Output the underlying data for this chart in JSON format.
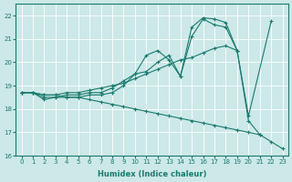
{
  "xlabel": "Humidex (Indice chaleur)",
  "background_color": "#cce8e8",
  "grid_color": "#ffffff",
  "line_color": "#1a7a6e",
  "xlim": [
    -0.5,
    23.5
  ],
  "ylim": [
    16,
    22.5
  ],
  "yticks": [
    16,
    17,
    18,
    19,
    20,
    21,
    22
  ],
  "xticks": [
    0,
    1,
    2,
    3,
    4,
    5,
    6,
    7,
    8,
    9,
    10,
    11,
    12,
    13,
    14,
    15,
    16,
    17,
    18,
    19,
    20,
    21,
    22,
    23
  ],
  "lines": [
    {
      "x": [
        0,
        1,
        2,
        3,
        4,
        5,
        6,
        7,
        8,
        9,
        10,
        11,
        12,
        13,
        14,
        15,
        16,
        17,
        18,
        19,
        20,
        21,
        22,
        23
      ],
      "y": [
        18.7,
        18.7,
        18.4,
        18.5,
        18.5,
        18.5,
        18.6,
        18.6,
        18.7,
        19.0,
        19.5,
        20.3,
        20.5,
        20.1,
        19.4,
        21.5,
        21.9,
        21.85,
        21.7,
        20.5,
        17.5,
        16.9,
        null,
        null
      ]
    },
    {
      "x": [
        0,
        1,
        2,
        3,
        4,
        5,
        6,
        7,
        8,
        9,
        10,
        11,
        12,
        13,
        14,
        15,
        16,
        17,
        18,
        19,
        20,
        21,
        22
      ],
      "y": [
        18.7,
        18.7,
        18.5,
        18.5,
        18.6,
        18.6,
        18.7,
        18.7,
        18.9,
        19.2,
        19.5,
        19.6,
        20.0,
        20.3,
        19.4,
        21.1,
        21.85,
        21.6,
        21.5,
        20.5,
        17.7,
        null,
        21.75
      ]
    },
    {
      "x": [
        0,
        1,
        2,
        3,
        4,
        5,
        6,
        7,
        8,
        9,
        10,
        11,
        12,
        13,
        14,
        15,
        16,
        17,
        18,
        19
      ],
      "y": [
        18.7,
        18.7,
        18.6,
        18.6,
        18.7,
        18.7,
        18.8,
        18.9,
        19.0,
        19.1,
        19.3,
        19.5,
        19.7,
        19.9,
        20.1,
        20.2,
        20.4,
        20.6,
        20.7,
        20.5
      ]
    },
    {
      "x": [
        0,
        1,
        2,
        3,
        4,
        5,
        6,
        7,
        8,
        9,
        10,
        11,
        12,
        13,
        14,
        15,
        16,
        17,
        18,
        19,
        20,
        21,
        22,
        23
      ],
      "y": [
        18.7,
        18.7,
        18.6,
        18.6,
        18.5,
        18.5,
        18.4,
        18.3,
        18.2,
        18.1,
        18.0,
        17.9,
        17.8,
        17.7,
        17.6,
        17.5,
        17.4,
        17.3,
        17.2,
        17.1,
        17.0,
        16.9,
        16.6,
        16.3
      ]
    }
  ]
}
